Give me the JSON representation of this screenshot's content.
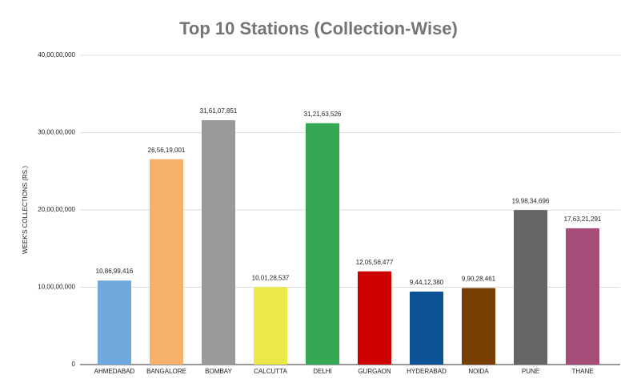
{
  "chart_data": {
    "type": "bar",
    "title": "Top 10 Stations (Collection-Wise)",
    "y_label": "WEEK'S COLLECTIONS (RS.)",
    "categories": [
      "AHMEDABAD",
      "BANGALORE",
      "BOMBAY",
      "CALCUTTA",
      "DELHI",
      "GURGAON",
      "HYDERABAD",
      "NOIDA",
      "PUNE",
      "THANE"
    ],
    "values": [
      108699416,
      265619001,
      316107851,
      100128537,
      312163526,
      120556477,
      94412380,
      99028461,
      199834696,
      176321291
    ],
    "value_labels": [
      "10,86,99,416",
      "26,56,19,001",
      "31,61,07,851",
      "10,01,28,537",
      "31,21,63,526",
      "12,05,56,477",
      "9,44,12,380",
      "9,90,28,461",
      "19,98,34,696",
      "17,63,21,291"
    ],
    "colors": [
      "#6fa8dc",
      "#f6b26b",
      "#999999",
      "#ebe84a",
      "#34a853",
      "#cc0000",
      "#0b5394",
      "#783f04",
      "#666666",
      "#a64d79"
    ],
    "ylim": [
      0,
      400000000
    ],
    "yticks": [
      0,
      {
        "value": 100000000,
        "label": "10,00,00,000"
      },
      {
        "value": 200000000,
        "label": "20,00,00,000"
      },
      {
        "value": 300000000,
        "label": "30,00,00,000"
      },
      {
        "value": 400000000,
        "label": "40,00,00,000"
      }
    ],
    "grid": true
  }
}
